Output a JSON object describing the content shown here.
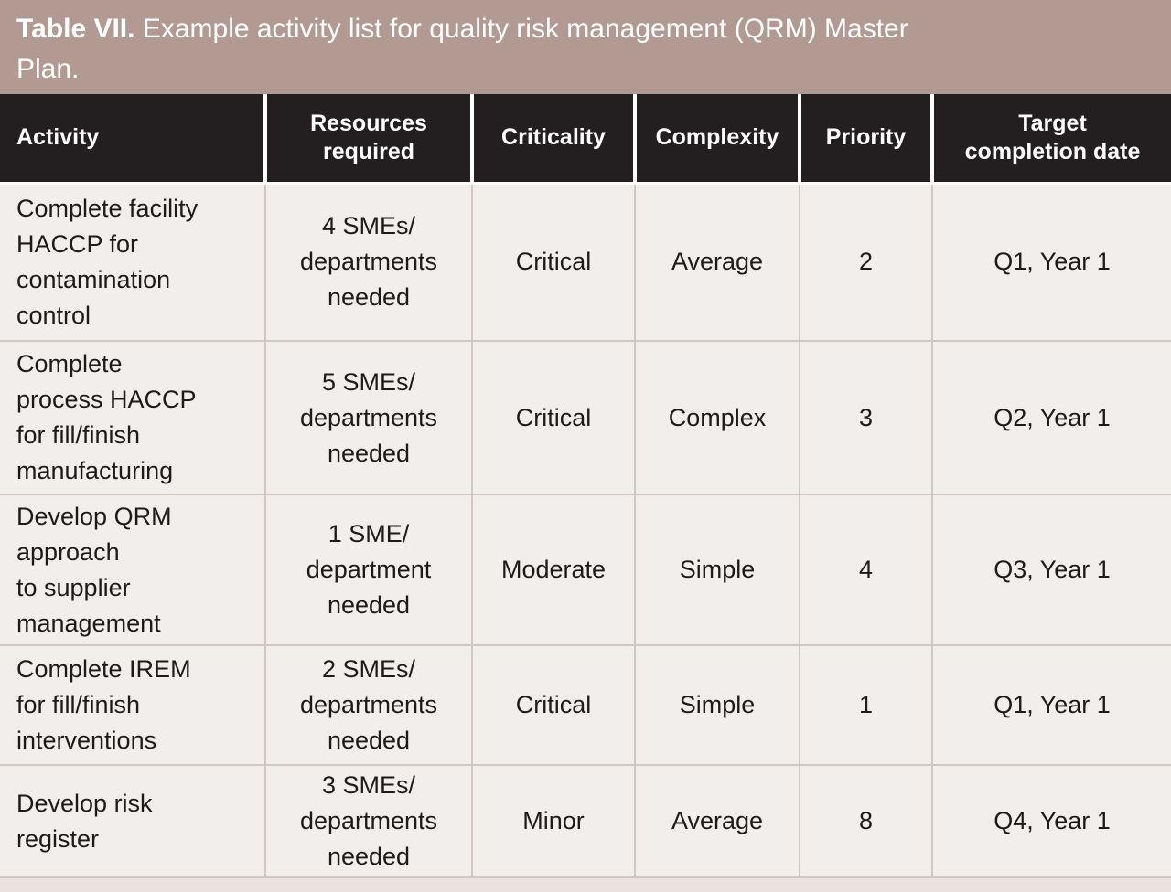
{
  "figure": {
    "title": {
      "label": "Table VII.",
      "text": " Example activity list for quality risk management (QRM) Master\nPlan."
    }
  },
  "table": {
    "headers": [
      "Activity",
      "Resources\nrequired",
      "Criticality",
      "Complexity",
      "Priority",
      "Target\ncompletion date"
    ],
    "rows": [
      [
        "Complete facility\nHACCP for\ncontamination\ncontrol",
        "4 SMEs/\ndepartments\nneeded",
        "Critical",
        "Average",
        "2",
        "Q1, Year 1"
      ],
      [
        "Complete\nprocess HACCP\nfor fill/finish\nmanufacturing",
        "5 SMEs/\ndepartments\nneeded",
        "Critical",
        "Complex",
        "3",
        "Q2, Year 1"
      ],
      [
        "Develop QRM\napproach\nto supplier\nmanagement",
        "1 SME/\ndepartment\nneeded",
        "Moderate",
        "Simple",
        "4",
        "Q3, Year 1"
      ],
      [
        "Complete IREM\nfor fill/finish\ninterventions",
        "2 SMEs/\ndepartments\nneeded",
        "Critical",
        "Simple",
        "1",
        "Q1, Year 1"
      ],
      [
        "Develop risk\nregister",
        "3 SMEs/\ndepartments\nneeded",
        "Minor",
        "Average",
        "8",
        "Q4, Year 1"
      ]
    ]
  },
  "colors": {
    "title_band_bg": "#b29a92",
    "title_text": "#ffffff",
    "header_bg": "#231f20",
    "header_text": "#ffffff",
    "cell_bg": "#f2eeeb",
    "cell_text": "#1d1a1b",
    "grid_line": "#d3c7c2",
    "header_gap": "#ffffff"
  }
}
